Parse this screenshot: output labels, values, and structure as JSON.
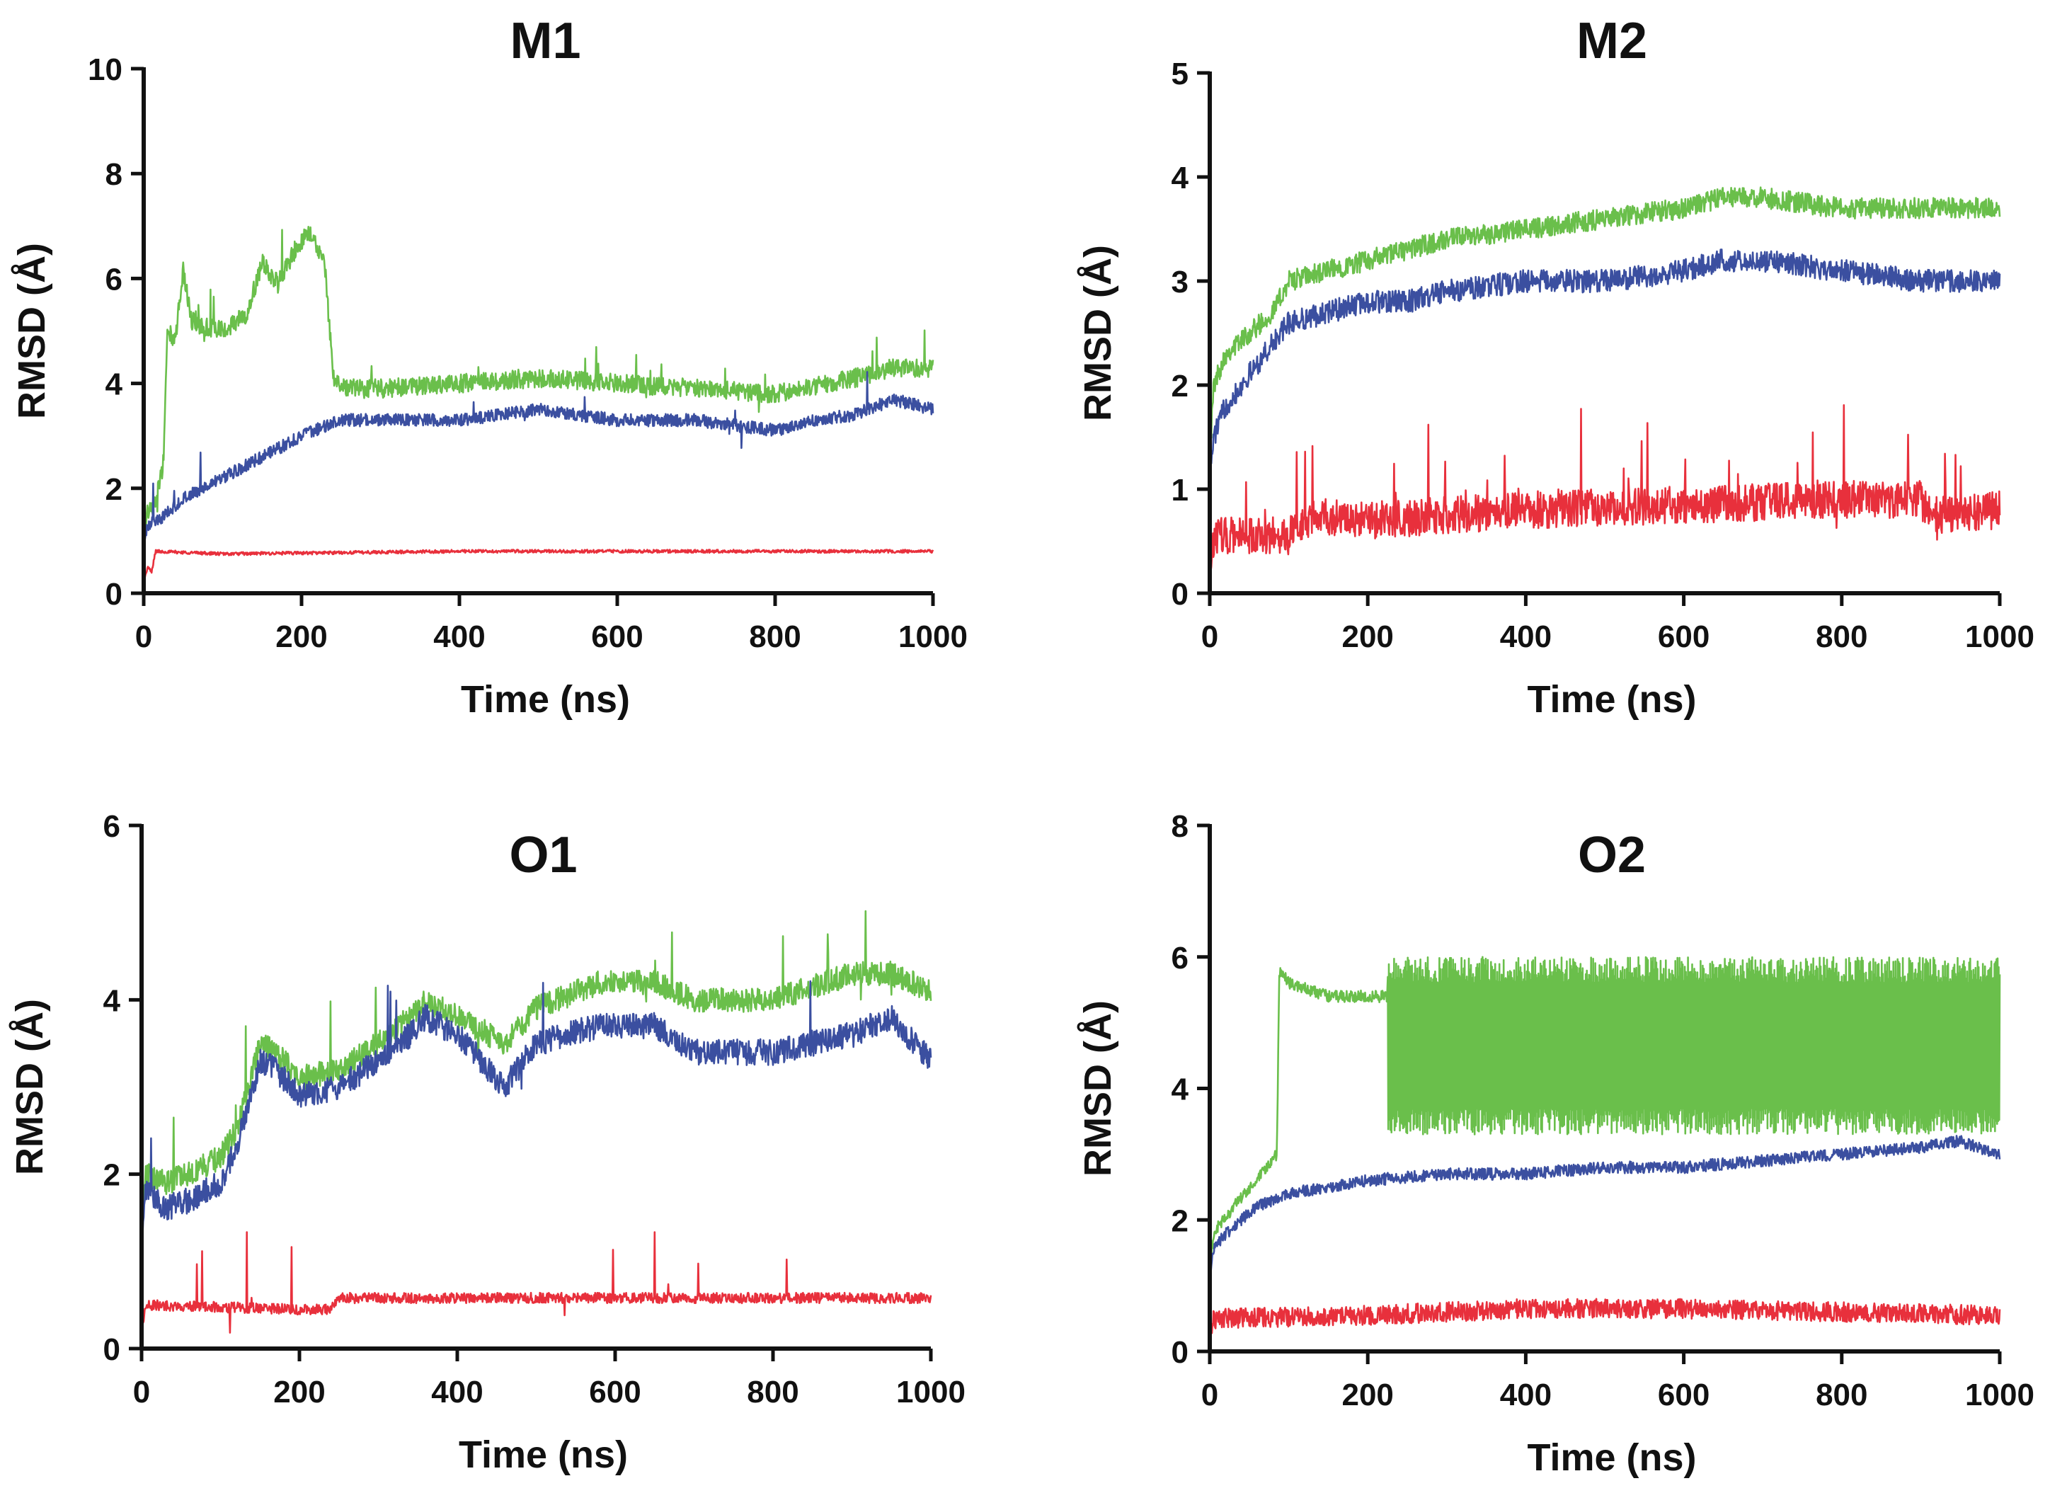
{
  "colors": {
    "green": "#6abf4b",
    "blue": "#3b4fa0",
    "red": "#e8303c"
  },
  "chart_data": [
    {
      "type": "line",
      "title": "M1",
      "xlabel": "Time (ns)",
      "ylabel": "RMSD (Å)",
      "xlim": [
        0,
        1000
      ],
      "ylim": [
        0,
        10
      ],
      "xticks": [
        0,
        200,
        400,
        600,
        800,
        1000
      ],
      "yticks": [
        0,
        2,
        4,
        6,
        8,
        10
      ],
      "series": [
        {
          "color": "green",
          "noise": 0.18,
          "spike": 0.03,
          "x": [
            0,
            5,
            15,
            25,
            30,
            40,
            50,
            60,
            75,
            100,
            130,
            150,
            170,
            190,
            210,
            230,
            240,
            260,
            300,
            400,
            500,
            600,
            700,
            800,
            900,
            950,
            1000
          ],
          "y": [
            1.2,
            1.6,
            1.7,
            2.5,
            5.0,
            4.8,
            6.2,
            5.2,
            5.1,
            5.0,
            5.3,
            6.3,
            5.9,
            6.5,
            6.9,
            6.2,
            4.1,
            3.9,
            3.9,
            4.0,
            4.1,
            4.0,
            3.9,
            3.8,
            4.1,
            4.3,
            4.3
          ]
        },
        {
          "color": "blue",
          "noise": 0.12,
          "spike": 0.01,
          "x": [
            0,
            5,
            20,
            50,
            100,
            150,
            200,
            250,
            300,
            400,
            500,
            600,
            700,
            800,
            850,
            900,
            950,
            1000
          ],
          "y": [
            1.0,
            1.3,
            1.4,
            1.8,
            2.2,
            2.6,
            3.0,
            3.3,
            3.3,
            3.3,
            3.5,
            3.3,
            3.3,
            3.1,
            3.3,
            3.4,
            3.7,
            3.5
          ]
        },
        {
          "color": "red",
          "noise": 0.03,
          "spike": 0.0,
          "x": [
            0,
            5,
            10,
            15,
            100,
            400,
            700,
            1000
          ],
          "y": [
            0.2,
            0.5,
            0.4,
            0.8,
            0.75,
            0.8,
            0.8,
            0.8
          ]
        }
      ]
    },
    {
      "type": "line",
      "title": "M2",
      "xlabel": "Time (ns)",
      "ylabel": "RMSD (Å)",
      "xlim": [
        0,
        1000
      ],
      "ylim": [
        0,
        5
      ],
      "xticks": [
        0,
        200,
        400,
        600,
        800,
        1000
      ],
      "yticks": [
        0,
        1,
        2,
        3,
        4,
        5
      ],
      "series": [
        {
          "color": "green",
          "noise": 0.1,
          "spike": 0.0,
          "x": [
            0,
            5,
            20,
            50,
            80,
            100,
            150,
            200,
            250,
            300,
            400,
            500,
            600,
            650,
            700,
            800,
            900,
            1000
          ],
          "y": [
            1.3,
            2.0,
            2.3,
            2.5,
            2.7,
            3.0,
            3.1,
            3.2,
            3.3,
            3.4,
            3.5,
            3.6,
            3.7,
            3.8,
            3.8,
            3.7,
            3.7,
            3.7
          ]
        },
        {
          "color": "blue",
          "noise": 0.11,
          "spike": 0.0,
          "x": [
            0,
            5,
            20,
            50,
            80,
            100,
            150,
            200,
            250,
            300,
            400,
            500,
            600,
            650,
            700,
            800,
            900,
            1000
          ],
          "y": [
            1.1,
            1.5,
            1.8,
            2.1,
            2.4,
            2.6,
            2.7,
            2.8,
            2.8,
            2.9,
            3.0,
            3.0,
            3.1,
            3.2,
            3.2,
            3.1,
            3.0,
            3.0
          ]
        },
        {
          "color": "red",
          "noise": 0.18,
          "spike": 0.03,
          "x": [
            0,
            5,
            100,
            140,
            200,
            300,
            400,
            600,
            800,
            900,
            910,
            1000
          ],
          "y": [
            0.2,
            0.55,
            0.55,
            0.75,
            0.7,
            0.75,
            0.8,
            0.85,
            0.9,
            0.9,
            0.75,
            0.8
          ]
        }
      ]
    },
    {
      "type": "line",
      "title": "O1",
      "xlabel": "Time (ns)",
      "ylabel": "RMSD (Å)",
      "xlim": [
        0,
        1000
      ],
      "ylim": [
        0,
        6
      ],
      "xticks": [
        0,
        200,
        400,
        600,
        800,
        1000
      ],
      "yticks": [
        0,
        2,
        4,
        6
      ],
      "series": [
        {
          "color": "green",
          "noise": 0.14,
          "spike": 0.01,
          "x": [
            0,
            5,
            30,
            60,
            100,
            120,
            150,
            170,
            200,
            250,
            300,
            340,
            360,
            400,
            460,
            500,
            580,
            650,
            700,
            800,
            900,
            950,
            1000
          ],
          "y": [
            1.4,
            2.0,
            1.9,
            2.0,
            2.2,
            2.5,
            3.5,
            3.4,
            3.1,
            3.2,
            3.5,
            3.8,
            4.0,
            3.8,
            3.5,
            3.9,
            4.2,
            4.2,
            4.0,
            4.0,
            4.3,
            4.3,
            4.1
          ]
        },
        {
          "color": "blue",
          "noise": 0.15,
          "spike": 0.01,
          "x": [
            0,
            5,
            30,
            60,
            100,
            120,
            150,
            170,
            200,
            250,
            300,
            340,
            360,
            400,
            460,
            500,
            580,
            650,
            700,
            800,
            900,
            950,
            1000
          ],
          "y": [
            1.3,
            1.8,
            1.6,
            1.7,
            1.9,
            2.3,
            3.3,
            3.2,
            2.9,
            3.0,
            3.3,
            3.6,
            3.8,
            3.6,
            3.0,
            3.5,
            3.7,
            3.7,
            3.4,
            3.4,
            3.6,
            3.8,
            3.3
          ]
        },
        {
          "color": "red",
          "noise": 0.06,
          "spike": 0.01,
          "x": [
            0,
            5,
            200,
            240,
            250,
            500,
            800,
            1000
          ],
          "y": [
            0.2,
            0.5,
            0.45,
            0.45,
            0.58,
            0.58,
            0.58,
            0.58
          ]
        }
      ]
    },
    {
      "type": "line",
      "title": "O2",
      "xlabel": "Time (ns)",
      "ylabel": "RMSD (Å)",
      "xlim": [
        0,
        1000
      ],
      "ylim": [
        0,
        8
      ],
      "xticks": [
        0,
        200,
        400,
        600,
        800,
        1000
      ],
      "yticks": [
        0,
        2,
        4,
        6,
        8
      ],
      "series": [
        {
          "color": "green",
          "noise": 0.09,
          "spike": 0.0,
          "x": [
            0,
            5,
            30,
            60,
            85,
            88,
            100,
            150,
            200,
            220,
            1000
          ],
          "y": [
            1.3,
            1.8,
            2.2,
            2.6,
            3.0,
            5.8,
            5.6,
            5.4,
            5.4,
            5.4,
            5.7
          ],
          "osc_from": 225,
          "osc_to": 1000,
          "osc_low": 3.5,
          "osc_high": 5.8
        },
        {
          "color": "blue",
          "noise": 0.09,
          "spike": 0.0,
          "x": [
            0,
            5,
            30,
            60,
            100,
            200,
            300,
            400,
            500,
            600,
            700,
            800,
            900,
            950,
            1000
          ],
          "y": [
            1.1,
            1.6,
            1.9,
            2.2,
            2.4,
            2.6,
            2.7,
            2.7,
            2.8,
            2.8,
            2.9,
            3.0,
            3.1,
            3.2,
            3.0
          ]
        },
        {
          "color": "red",
          "noise": 0.15,
          "spike": 0.0,
          "x": [
            0,
            5,
            200,
            400,
            600,
            800,
            1000
          ],
          "y": [
            0.2,
            0.5,
            0.55,
            0.65,
            0.65,
            0.6,
            0.55
          ]
        }
      ]
    }
  ]
}
